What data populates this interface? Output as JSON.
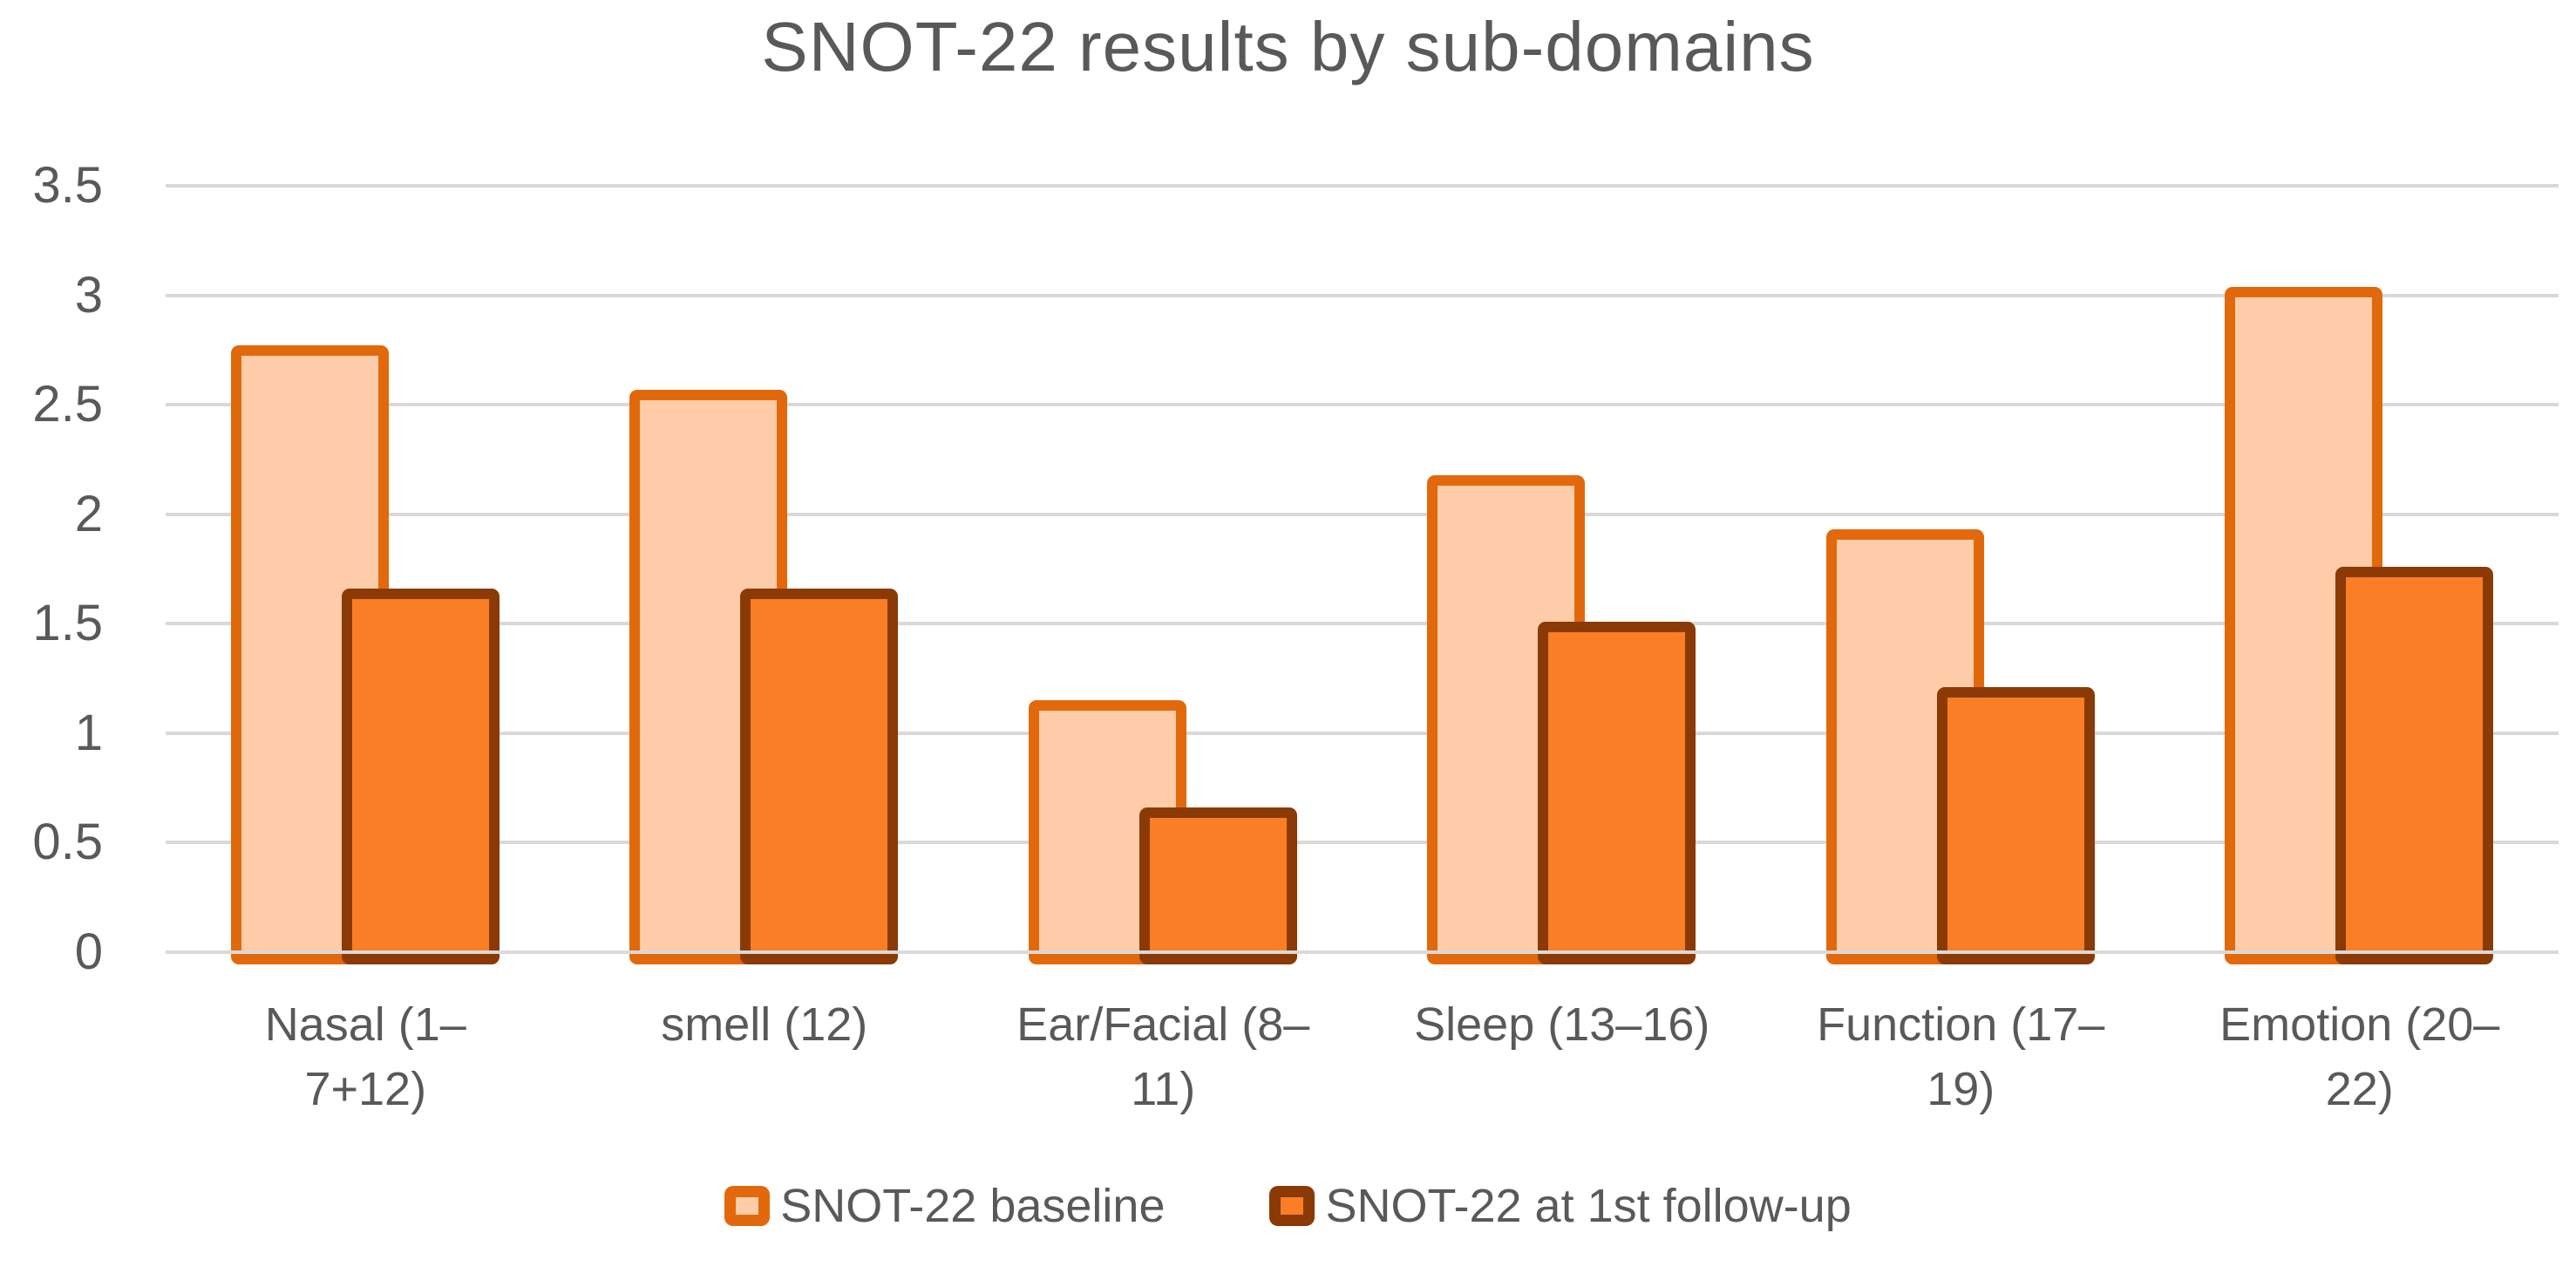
{
  "chart_data": {
    "type": "bar",
    "title": "SNOT-22 results by sub-domains",
    "categories": [
      "Nasal (1–7+12)",
      "smell (12)",
      "Ear/Facial (8–11)",
      "Sleep (13–16)",
      "Function (17–19)",
      "Emotion (20–22)"
    ],
    "series": [
      {
        "name": "SNOT-22 baseline",
        "values": [
          2.77,
          2.57,
          1.15,
          2.18,
          1.93,
          3.04
        ],
        "fill": "#FECCA9",
        "border": "#E2690B"
      },
      {
        "name": "SNOT-22 at 1st follow-up",
        "values": [
          1.66,
          1.66,
          0.66,
          1.51,
          1.21,
          1.76
        ],
        "fill": "#F97E26",
        "border": "#8B3A06"
      }
    ],
    "xlabel": "",
    "ylabel": "",
    "ylim": [
      0,
      3.5
    ],
    "ytick_labels": [
      "0",
      "0.5",
      "1",
      "1.5",
      "2",
      "2.5",
      "3",
      "3.5"
    ],
    "grid": true,
    "legend_position": "bottom"
  },
  "colors": {
    "text": "#595959",
    "gridline": "#D9D9D9",
    "background": "#FFFFFF",
    "baseline_fill": "#FECCA9",
    "baseline_border": "#E2690B",
    "followup_fill": "#F97E26",
    "followup_border": "#8B3A06"
  }
}
